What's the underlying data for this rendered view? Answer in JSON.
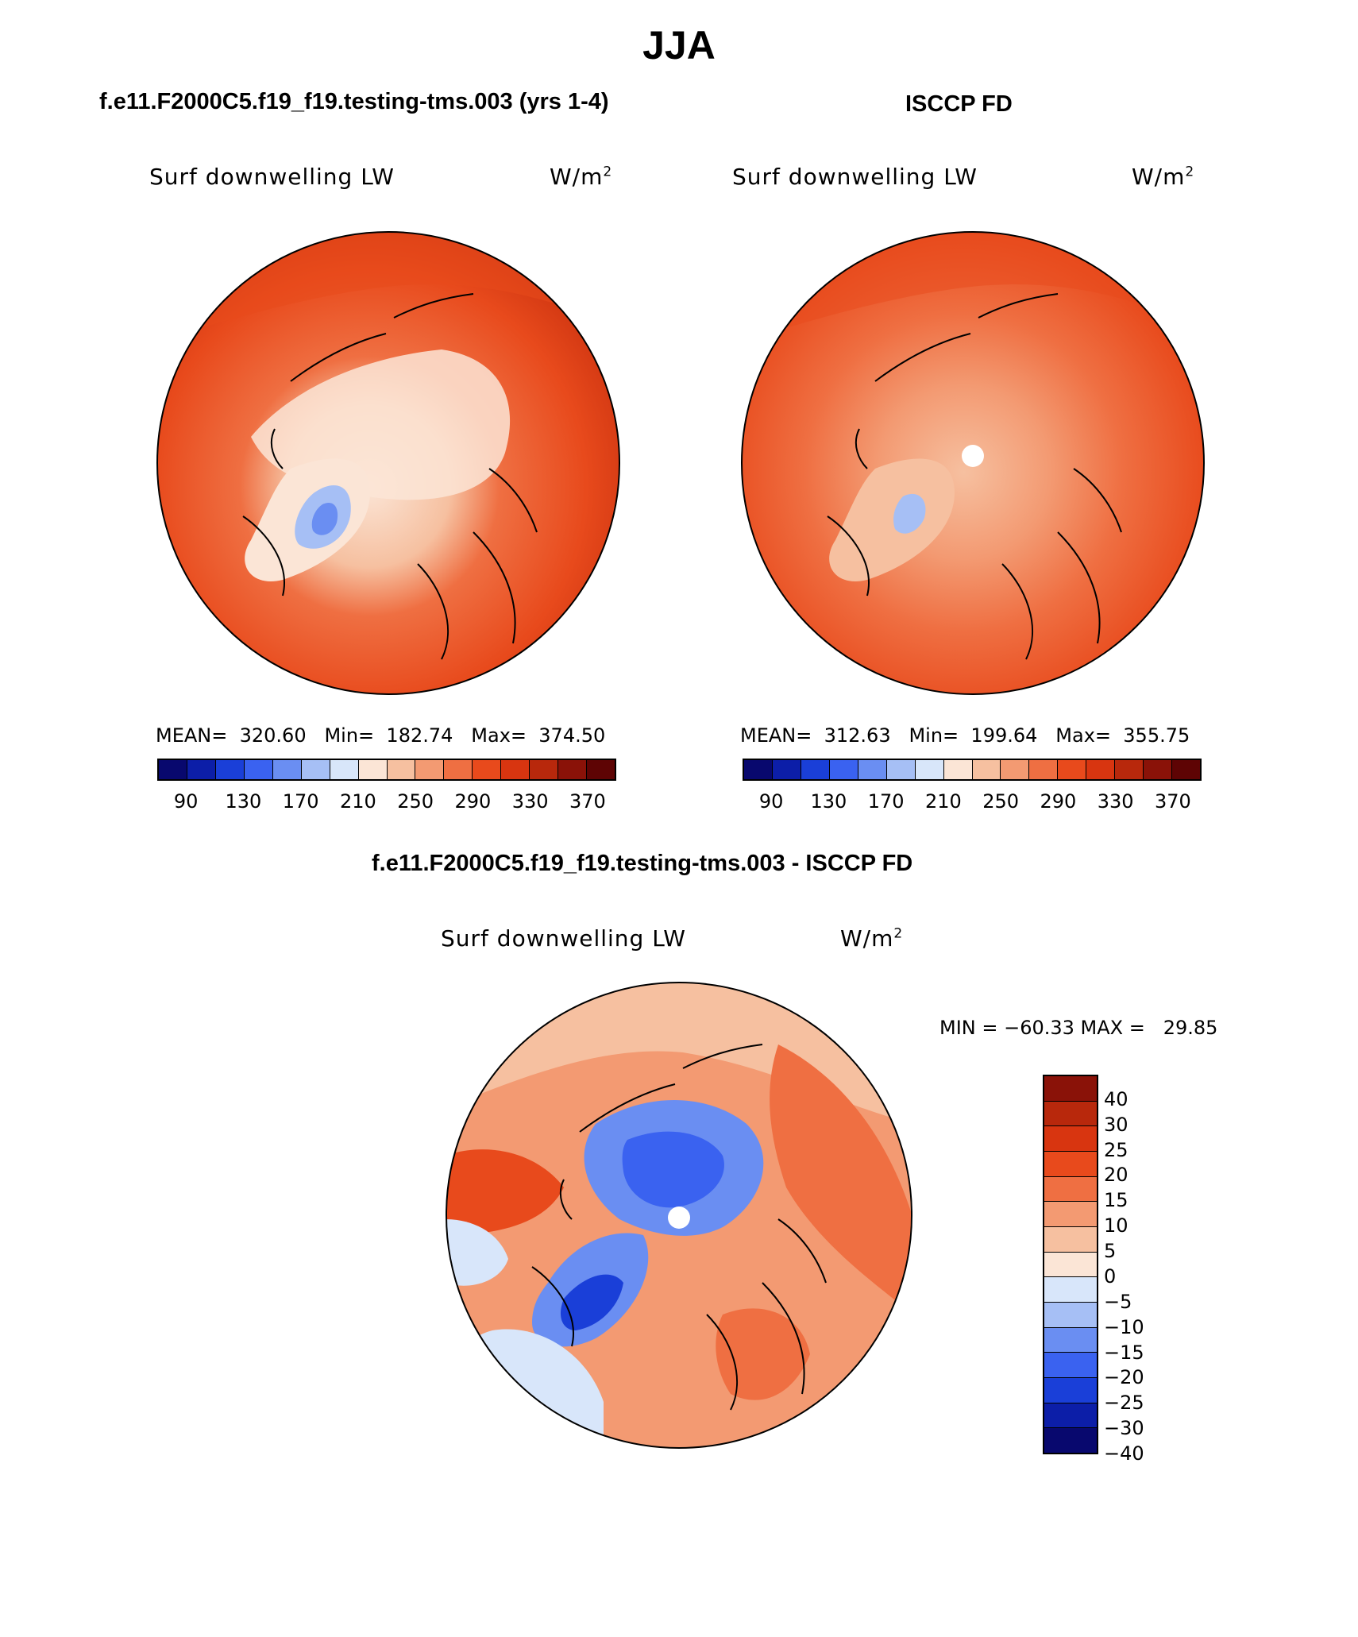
{
  "figure": {
    "title": "JJA",
    "panels": {
      "model": {
        "title": "f.e11.F2000C5.f19_f19.testing-tms.003 (yrs 1-4)",
        "variable": "Surf downwelling LW",
        "units_base": "W/m",
        "units_exp": "2",
        "stats_text": "MEAN=  320.60   Min=  182.74   Max=  374.50",
        "mean": 320.6,
        "min": 182.74,
        "max": 374.5
      },
      "obs": {
        "title": "ISCCP FD",
        "variable": "Surf downwelling LW",
        "units_base": "W/m",
        "units_exp": "2",
        "stats_text": "MEAN=  312.63   Min=  199.64   Max=  355.75",
        "mean": 312.63,
        "min": 199.64,
        "max": 355.75
      },
      "diff": {
        "title": "f.e11.F2000C5.f19_f19.testing-tms.003 - ISCCP FD",
        "variable": "Surf downwelling LW",
        "units_base": "W/m",
        "units_exp": "2",
        "minmax_text": "MIN = −60.33 MAX =   29.85",
        "min": -60.33,
        "max": 29.85
      }
    },
    "colorbar_abs": {
      "colors": [
        "#08086e",
        "#0c1ea8",
        "#1a3fd8",
        "#3a62f0",
        "#6a8ef2",
        "#a6bff5",
        "#d8e6fa",
        "#fbe5d6",
        "#f6c0a0",
        "#f39a72",
        "#ef6f42",
        "#e84a1c",
        "#d83510",
        "#b8280c",
        "#8a1208",
        "#5e0404"
      ],
      "tick_labels": [
        "90",
        "130",
        "170",
        "210",
        "250",
        "290",
        "330",
        "370"
      ]
    },
    "colorbar_diff": {
      "colors": [
        "#8a1208",
        "#b8280c",
        "#d83510",
        "#e84a1c",
        "#ef6f42",
        "#f39a72",
        "#f6c0a0",
        "#fbe5d6",
        "#d8e6fa",
        "#a6bff5",
        "#6a8ef2",
        "#3a62f0",
        "#1a3fd8",
        "#0c1ea8",
        "#08086e"
      ],
      "tick_labels": [
        "40",
        "30",
        "25",
        "20",
        "15",
        "10",
        "5",
        "0",
        "−5",
        "−10",
        "−15",
        "−20",
        "−25",
        "−30",
        "−40"
      ]
    }
  }
}
